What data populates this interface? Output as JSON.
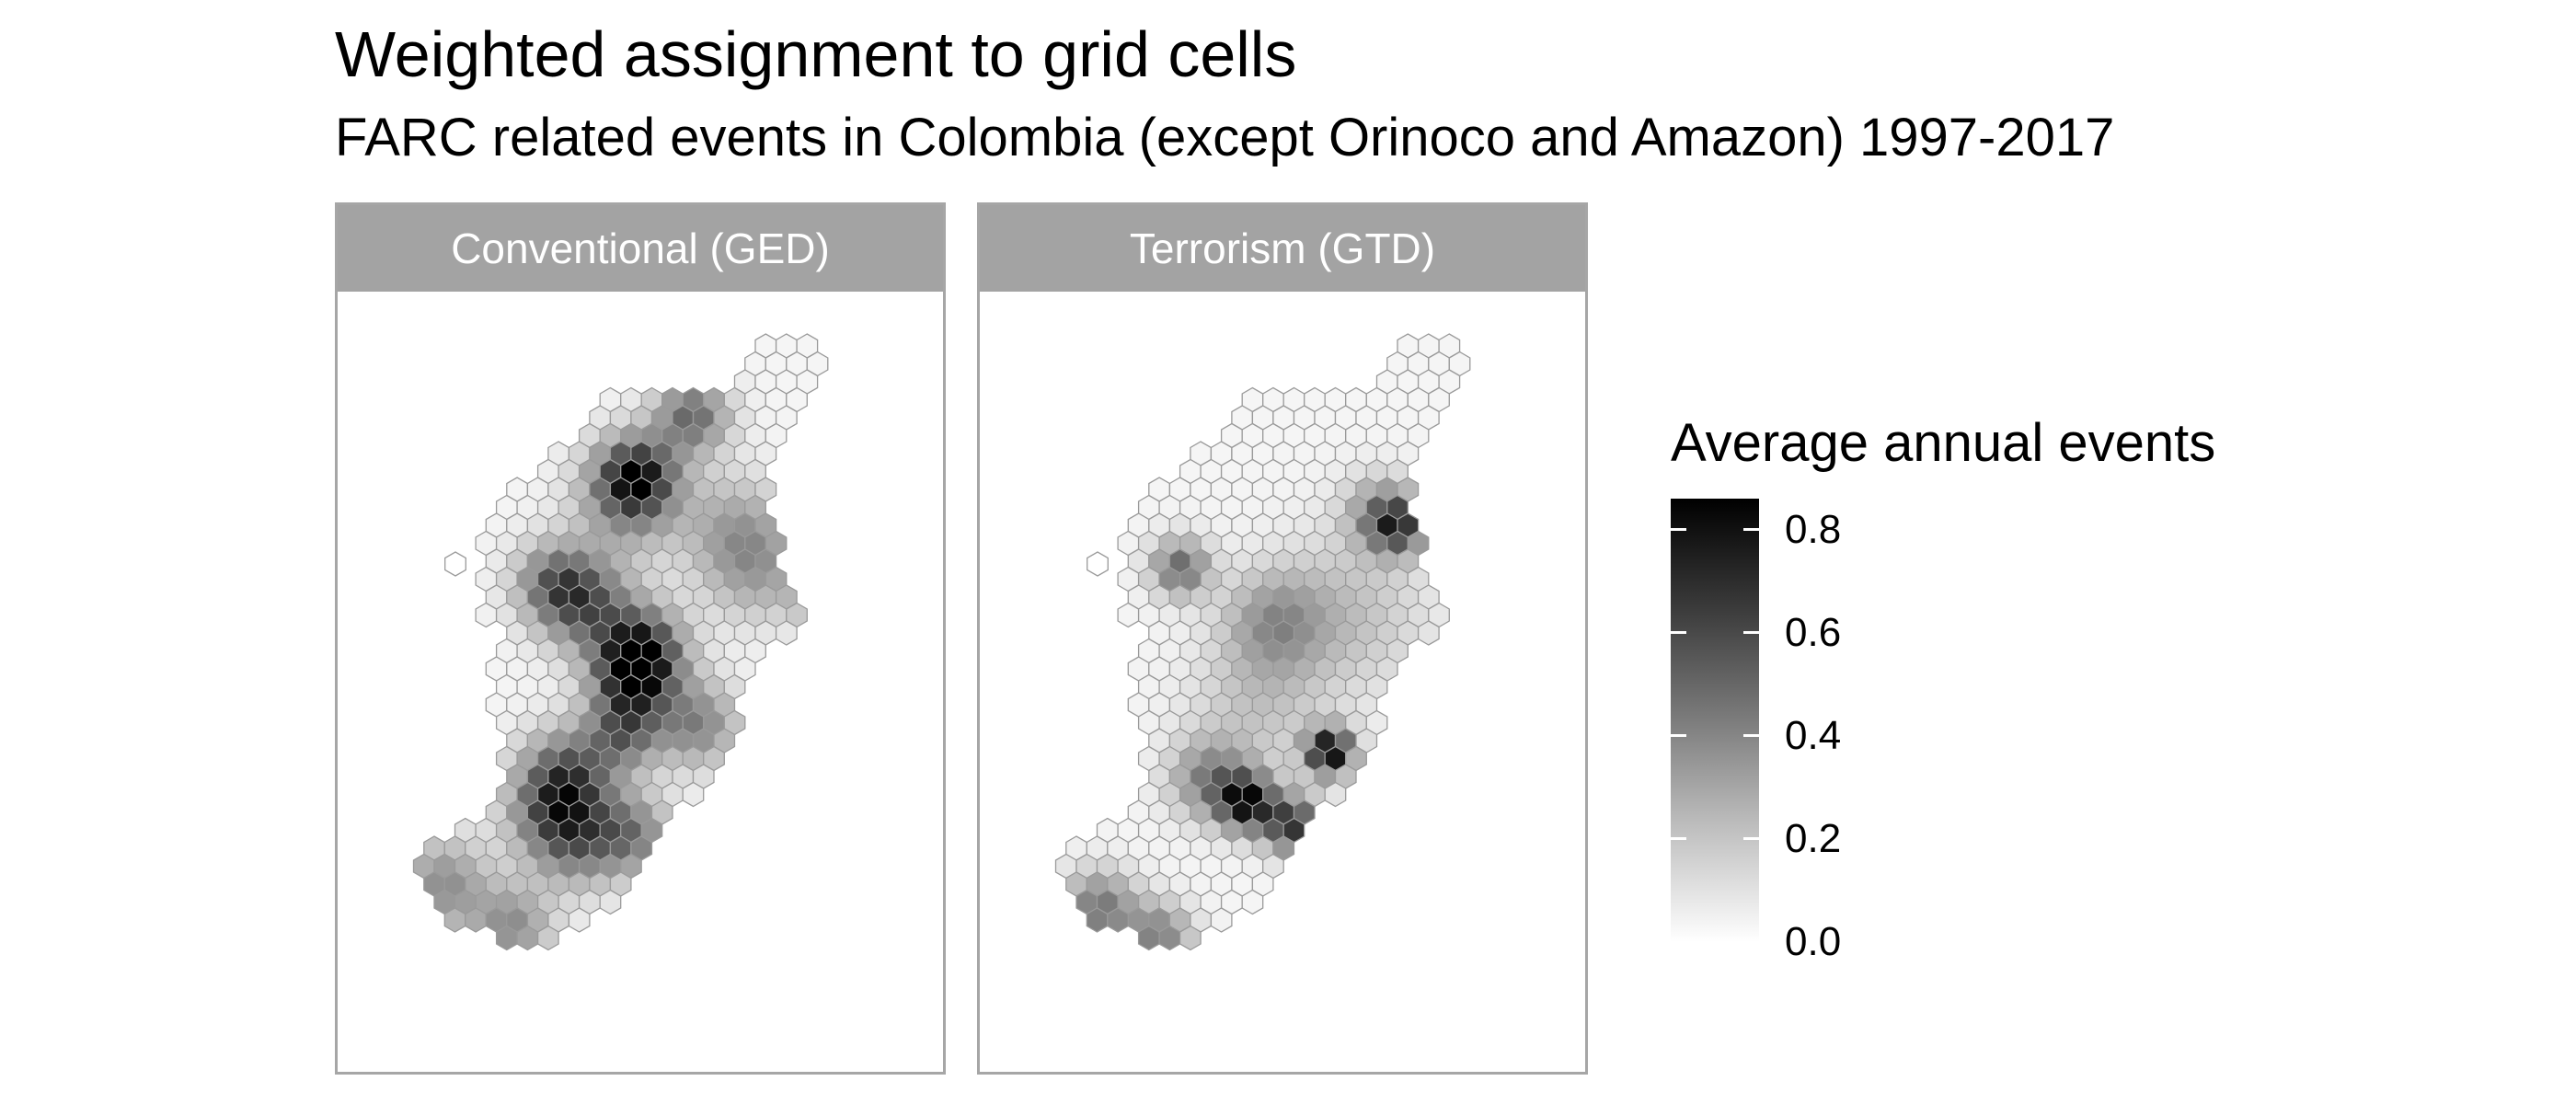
{
  "title": "Weighted assignment to grid cells",
  "subtitle": "FARC related events in Colombia (except Orinoco and Amazon) 1997-2017",
  "panels": [
    {
      "label": "Conventional (GED)"
    },
    {
      "label": "Terrorism (GTD)"
    }
  ],
  "legend": {
    "title": "Average annual events",
    "scale_min": 0,
    "scale_max": 0.86,
    "ticks": [
      {
        "value": 0.8,
        "label": "0.8"
      },
      {
        "value": 0.6,
        "label": "0.6"
      },
      {
        "value": 0.4,
        "label": "0.4"
      },
      {
        "value": 0.2,
        "label": "0.2"
      },
      {
        "value": 0.0,
        "label": "0.0"
      }
    ],
    "colors": {
      "low": "#ffffff",
      "high": "#000000"
    }
  }
}
